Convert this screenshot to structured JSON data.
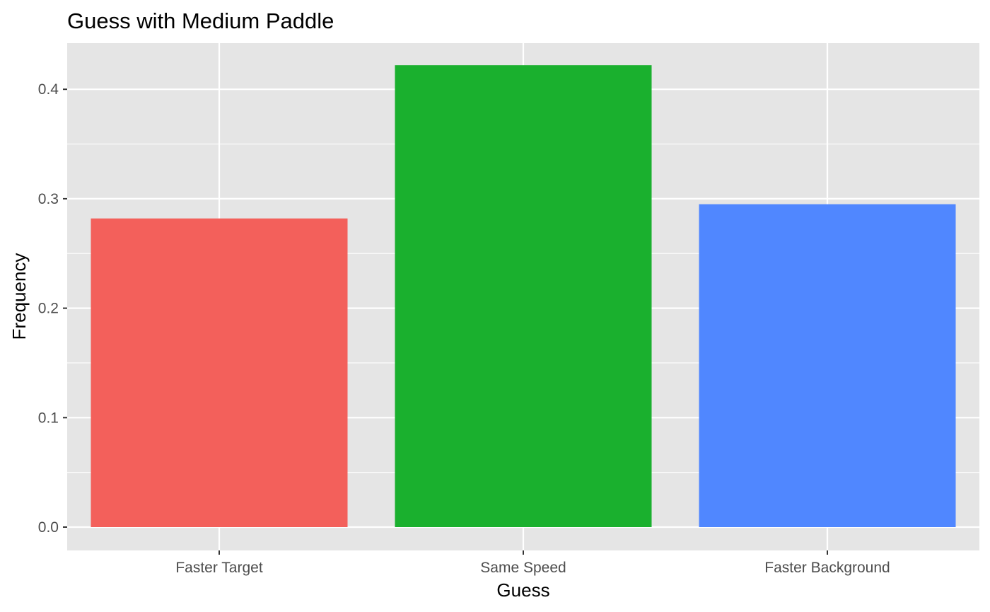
{
  "chart_data": {
    "type": "bar",
    "title": "Guess with Medium Paddle",
    "xlabel": "Guess",
    "ylabel": "Frequency",
    "categories": [
      "Faster Target",
      "Same Speed",
      "Faster Background"
    ],
    "values": [
      0.282,
      0.422,
      0.295
    ],
    "colors": [
      "#F3605B",
      "#1AB02E",
      "#5087FF"
    ],
    "ylim": [
      -0.02,
      0.443
    ],
    "yticks": [
      0.0,
      0.1,
      0.2,
      0.3,
      0.4
    ],
    "ytick_labels": [
      "0.0",
      "0.1",
      "0.2",
      "0.3",
      "0.4"
    ],
    "grid": true,
    "legend": "none",
    "panel_background": "#E5E5E5",
    "grid_color": "#FFFFFF"
  }
}
